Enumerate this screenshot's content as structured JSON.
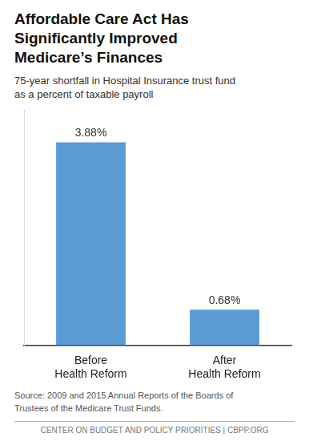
{
  "chart_data": {
    "type": "bar",
    "title": "Affordable Care Act Has\nSignificantly Improved\nMedicare’s Finances",
    "subtitle": "75-year shortfall in Hospital Insurance trust fund\nas a percent of taxable payroll",
    "categories": [
      "Before\nHealth Reform",
      "After\nHealth Reform"
    ],
    "values": [
      3.88,
      0.68
    ],
    "value_labels": [
      "3.88%",
      "0.68%"
    ],
    "data_labels": true,
    "color": "#5b9bd5",
    "ylim": [
      0,
      4.5
    ],
    "grid": false,
    "tick_labels": "x",
    "annotations": [
      "Source: 2009 and 2015 Annual Reports of the Boards of\nTrustees of the Medicare Trust Funds.",
      "CENTER ON BUDGET AND POLICY PRIORITIES | CBPP.ORG"
    ]
  }
}
